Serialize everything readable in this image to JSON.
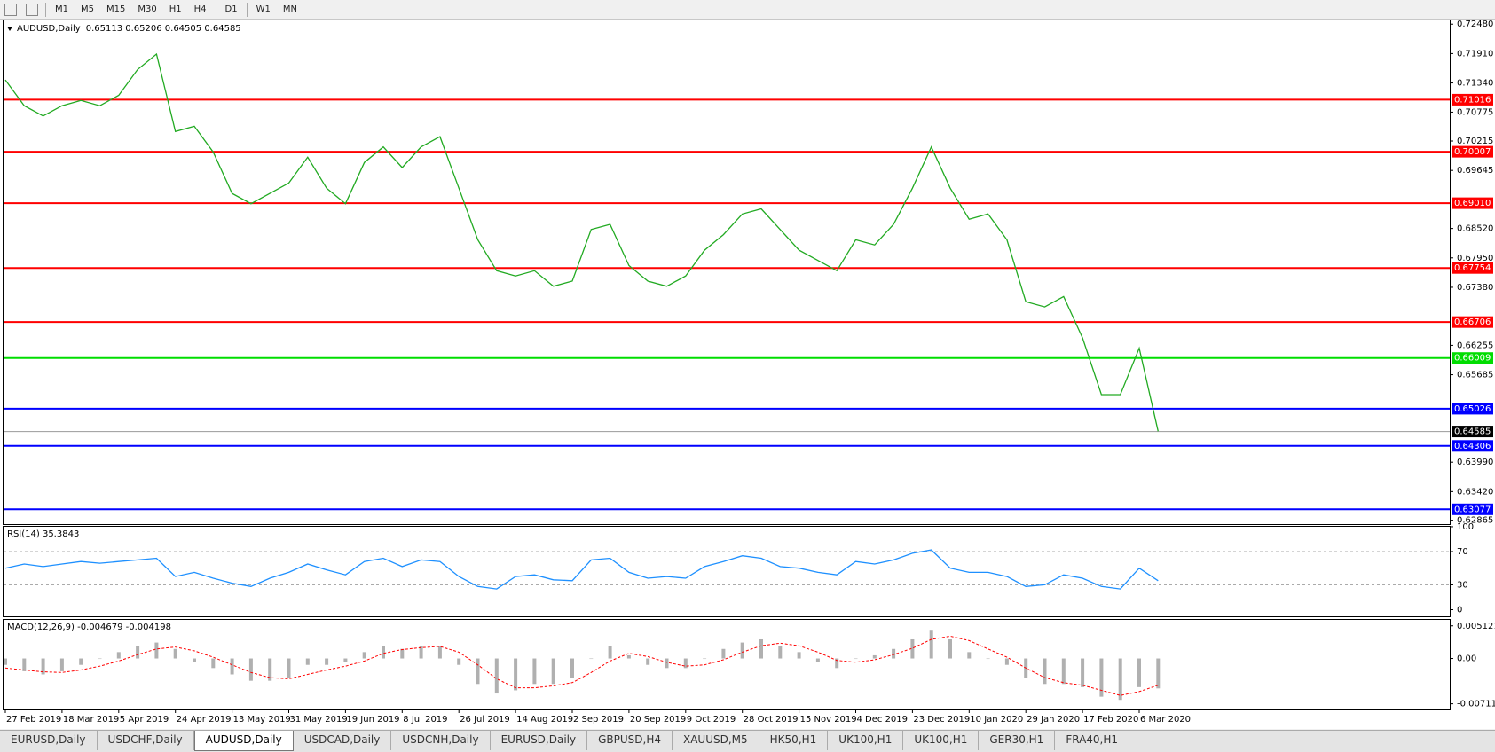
{
  "toolbar": {
    "timeframes": [
      "M1",
      "M5",
      "M15",
      "M30",
      "H1",
      "H4",
      "D1",
      "W1",
      "MN"
    ]
  },
  "chart_data": [
    {
      "type": "line",
      "title": "AUDUSD,Daily",
      "subtitle": "0.65113 0.65206 0.64505 0.64585",
      "color": "#22aa22",
      "categories": [
        "27 Feb 2019",
        null,
        null,
        "18 Mar 2019",
        null,
        null,
        "5 Apr 2019",
        null,
        null,
        "24 Apr 2019",
        null,
        null,
        "13 May 2019",
        null,
        null,
        "31 May 2019",
        null,
        null,
        "19 Jun 2019",
        null,
        null,
        "8 Jul 2019",
        null,
        null,
        "26 Jul 2019",
        null,
        null,
        "14 Aug 2019",
        null,
        null,
        "2 Sep 2019",
        null,
        null,
        "20 Sep 2019",
        null,
        null,
        "9 Oct 2019",
        null,
        null,
        "28 Oct 2019",
        null,
        null,
        "15 Nov 2019",
        null,
        null,
        "4 Dec 2019",
        null,
        null,
        "23 Dec 2019",
        null,
        null,
        "10 Jan 2020",
        null,
        null,
        "29 Jan 2020",
        null,
        null,
        "17 Feb 2020",
        null,
        null,
        "6 Mar 2020",
        null
      ],
      "values": [
        0.714,
        0.709,
        0.707,
        0.709,
        0.71,
        0.709,
        0.711,
        0.716,
        0.719,
        0.704,
        0.705,
        0.7,
        0.692,
        0.69,
        0.692,
        0.694,
        0.699,
        0.693,
        0.69,
        0.698,
        0.701,
        0.697,
        0.701,
        0.703,
        0.693,
        0.683,
        0.677,
        0.676,
        0.677,
        0.674,
        0.675,
        0.685,
        0.686,
        0.678,
        0.675,
        0.674,
        0.676,
        0.681,
        0.684,
        0.688,
        0.689,
        0.685,
        0.681,
        0.679,
        0.677,
        0.683,
        0.682,
        0.686,
        0.693,
        0.701,
        0.693,
        0.687,
        0.688,
        0.683,
        0.671,
        0.67,
        0.672,
        0.664,
        0.653,
        0.653,
        0.662,
        0.6459
      ],
      "ylim": [
        0.6279,
        0.7257
      ],
      "yticks": [
        {
          "value": 0.7248,
          "label": "0.72480"
        },
        {
          "value": 0.7191,
          "label": "0.71910"
        },
        {
          "value": 0.7134,
          "label": "0.71340"
        },
        {
          "value": 0.70775,
          "label": "0.70775"
        },
        {
          "value": 0.70215,
          "label": "0.70215"
        },
        {
          "value": 0.69645,
          "label": "0.69645"
        },
        {
          "value": 0.6852,
          "label": "0.68520"
        },
        {
          "value": 0.6795,
          "label": "0.67950"
        },
        {
          "value": 0.6738,
          "label": "0.67380"
        },
        {
          "value": 0.66255,
          "label": "0.66255"
        },
        {
          "value": 0.65685,
          "label": "0.65685"
        },
        {
          "value": 0.6399,
          "label": "0.63990"
        },
        {
          "value": 0.6342,
          "label": "0.63420"
        },
        {
          "value": 0.62865,
          "label": "0.62865"
        }
      ],
      "levels": [
        {
          "value": 0.71016,
          "label": "0.71016",
          "color": "#ff0000"
        },
        {
          "value": 0.70007,
          "label": "0.70007",
          "color": "#ff0000"
        },
        {
          "value": 0.6901,
          "label": "0.69010",
          "color": "#ff0000"
        },
        {
          "value": 0.67754,
          "label": "0.67754",
          "color": "#ff0000"
        },
        {
          "value": 0.66706,
          "label": "0.66706",
          "color": "#ff0000"
        },
        {
          "value": 0.66009,
          "label": "0.66009",
          "color": "#00dd00"
        },
        {
          "value": 0.65026,
          "label": "0.65026",
          "color": "#0000ff"
        },
        {
          "value": 0.64306,
          "label": "0.64306",
          "color": "#0000ff"
        },
        {
          "value": 0.63077,
          "label": "0.63077",
          "color": "#0000ff"
        }
      ],
      "last": {
        "value": 0.64585,
        "label": "0.64585"
      }
    },
    {
      "type": "line",
      "title": "RSI(14) 35.3843",
      "color": "#1e90ff",
      "values": [
        50,
        55,
        52,
        55,
        58,
        56,
        58,
        60,
        62,
        40,
        45,
        38,
        32,
        28,
        38,
        45,
        55,
        48,
        42,
        58,
        62,
        52,
        60,
        58,
        40,
        28,
        25,
        40,
        42,
        36,
        35,
        60,
        62,
        45,
        38,
        40,
        38,
        52,
        58,
        65,
        62,
        52,
        50,
        45,
        42,
        58,
        55,
        60,
        68,
        72,
        50,
        45,
        45,
        40,
        28,
        30,
        42,
        38,
        28,
        25,
        50,
        35
      ],
      "ylim": [
        -8,
        101
      ],
      "yticks": [
        100,
        70,
        30,
        0
      ],
      "levels": [
        70,
        30
      ]
    },
    {
      "type": "bar",
      "title": "MACD(12,26,9) -0.004679 -0.004198",
      "color": "#b0b0b0",
      "values": [
        -0.001,
        -0.002,
        -0.0025,
        -0.002,
        -0.001,
        0,
        0.001,
        0.002,
        0.0025,
        0.0015,
        -0.0005,
        -0.0015,
        -0.0025,
        -0.0035,
        -0.0035,
        -0.003,
        -0.001,
        -0.001,
        -0.0005,
        0.001,
        0.002,
        0.0015,
        0.002,
        0.002,
        -0.001,
        -0.004,
        -0.0055,
        -0.005,
        -0.004,
        -0.004,
        -0.003,
        0,
        0.002,
        0.0005,
        -0.001,
        -0.0015,
        -0.0015,
        0,
        0.0015,
        0.0025,
        0.003,
        0.002,
        0.001,
        -0.0005,
        -0.0015,
        0,
        0.0005,
        0.0015,
        0.003,
        0.0045,
        0.003,
        0.001,
        0,
        -0.001,
        -0.003,
        -0.004,
        -0.004,
        -0.0045,
        -0.006,
        -0.0065,
        -0.0045,
        -0.0047
      ],
      "signal": {
        "color": "#ff0000",
        "values": [
          -0.0015,
          -0.0018,
          -0.0021,
          -0.0022,
          -0.0018,
          -0.0012,
          -0.0004,
          0.0006,
          0.0015,
          0.0018,
          0.0012,
          0.0002,
          -0.001,
          -0.0022,
          -0.003,
          -0.0032,
          -0.0025,
          -0.0018,
          -0.0012,
          -0.0004,
          0.0008,
          0.0014,
          0.0017,
          0.0019,
          0.001,
          -0.001,
          -0.0032,
          -0.0046,
          -0.0046,
          -0.0043,
          -0.0038,
          -0.0022,
          -0.0004,
          0.0008,
          0.0003,
          -0.0006,
          -0.0012,
          -0.001,
          -0.0002,
          0.001,
          0.002,
          0.0024,
          0.002,
          0.001,
          -0.0003,
          -0.0006,
          -0.0002,
          0.0006,
          0.0016,
          0.003,
          0.0035,
          0.0028,
          0.0015,
          0.0002,
          -0.0015,
          -0.003,
          -0.0038,
          -0.0042,
          -0.005,
          -0.0058,
          -0.0052,
          -0.0042
        ]
      },
      "ylim": [
        -0.008,
        0.0062
      ],
      "yticks": [
        0.005121,
        {
          "value": 0,
          "label": "0.00"
        },
        -0.007111
      ]
    }
  ],
  "tabs": {
    "items": [
      "EURUSD,Daily",
      "USDCHF,Daily",
      "AUDUSD,Daily",
      "USDCAD,Daily",
      "USDCNH,Daily",
      "EURUSD,Daily",
      "GBPUSD,H4",
      "XAUUSD,M5",
      "HK50,H1",
      "UK100,H1",
      "UK100,H1",
      "GER30,H1",
      "FRA40,H1"
    ],
    "active": 2
  }
}
